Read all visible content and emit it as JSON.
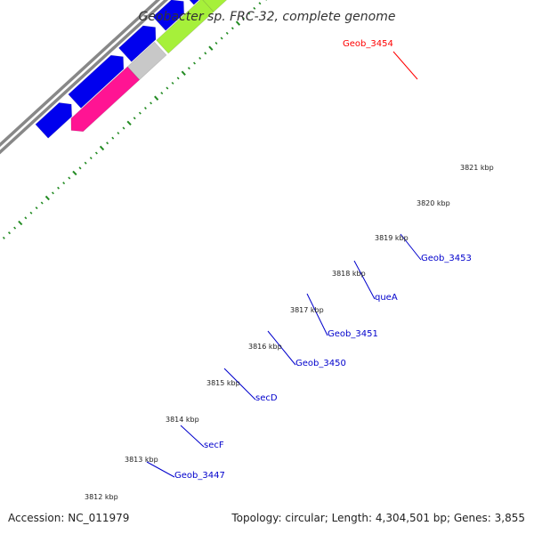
{
  "title": "Geobacter sp. FRC-32, complete genome",
  "footer": {
    "accession": "Accession: NC_011979",
    "topology": "Topology: circular; Length: 4,304,501 bp; Genes: 3,855"
  },
  "ticks": [
    "3812 kbp",
    "3813 kbp",
    "3814 kbp",
    "3815 kbp",
    "3816 kbp",
    "3817 kbp",
    "3818 kbp",
    "3819 kbp",
    "3820 kbp",
    "3821 kbp"
  ],
  "gene_labels": [
    {
      "name": "Geob_3447"
    },
    {
      "name": "secF"
    },
    {
      "name": "secD"
    },
    {
      "name": "Geob_3450"
    },
    {
      "name": "Geob_3451"
    },
    {
      "name": "queA"
    },
    {
      "name": "Geob_3453"
    },
    {
      "name": "Geob_3454",
      "highlighted": true
    }
  ],
  "colors": {
    "forward_strand": "#0000ee",
    "magenta": "#ff1493",
    "silver": "#c8c8c8",
    "green": "#a6f03a",
    "salmon": "#f08c8c",
    "khaki": "#f0e6a0",
    "highlight": "#ff0000",
    "ticks": "#228b22",
    "backbone": "#888888",
    "label": "#0000cc"
  }
}
